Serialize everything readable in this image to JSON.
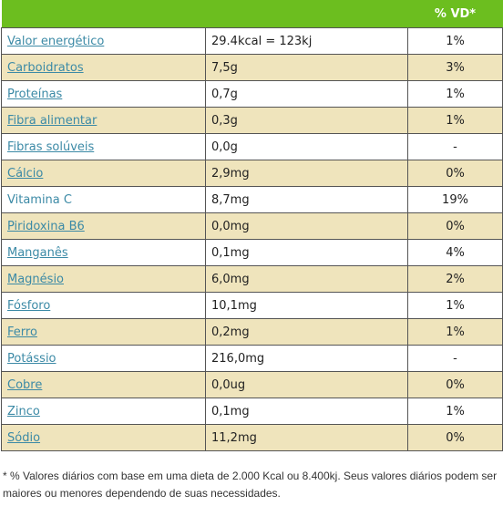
{
  "header": {
    "col1": "",
    "col2": "",
    "col3": "% VD*"
  },
  "colors": {
    "header_bg": "#6cbe1f",
    "alt_row": "#efe4bc",
    "link": "#3c8aa6"
  },
  "rows": [
    {
      "name": "Valor energético",
      "value": "29.4kcal = 123kj",
      "vd": "1%",
      "link": true
    },
    {
      "name": "Carboidratos",
      "value": "7,5g",
      "vd": "3%",
      "link": true
    },
    {
      "name": "Proteínas",
      "value": "0,7g",
      "vd": "1%",
      "link": true
    },
    {
      "name": "Fibra alimentar",
      "value": "0,3g",
      "vd": "1%",
      "link": true
    },
    {
      "name": "Fibras solúveis",
      "value": "0,0g",
      "vd": "-",
      "link": true
    },
    {
      "name": "Cálcio",
      "value": "2,9mg",
      "vd": "0%",
      "link": true
    },
    {
      "name": "Vitamina C",
      "value": "8,7mg",
      "vd": "19%",
      "link": false
    },
    {
      "name": "Piridoxina B6",
      "value": "0,0mg",
      "vd": "0%",
      "link": true
    },
    {
      "name": "Manganês",
      "value": "0,1mg",
      "vd": "4%",
      "link": true
    },
    {
      "name": "Magnésio",
      "value": "6,0mg",
      "vd": "2%",
      "link": true
    },
    {
      "name": "Fósforo",
      "value": "10,1mg",
      "vd": "1%",
      "link": true
    },
    {
      "name": "Ferro",
      "value": "0,2mg",
      "vd": "1%",
      "link": true
    },
    {
      "name": "Potássio",
      "value": "216,0mg",
      "vd": "-",
      "link": true
    },
    {
      "name": "Cobre",
      "value": "0,0ug",
      "vd": "0%",
      "link": true
    },
    {
      "name": "Zinco",
      "value": "0,1mg",
      "vd": "1%",
      "link": true
    },
    {
      "name": "Sódio",
      "value": "11,2mg",
      "vd": "0%",
      "link": true
    }
  ],
  "footnote": "* % Valores diários com base em uma dieta de 2.000 Kcal ou 8.400kj. Seus valores diários podem ser maiores ou menores dependendo de suas necessidades."
}
